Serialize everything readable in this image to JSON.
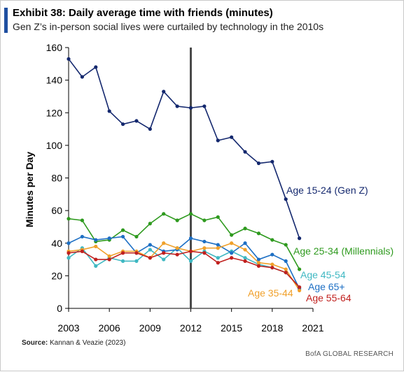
{
  "header": {
    "title": "Exhibit 38: Daily average time with friends (minutes)",
    "subtitle": "Gen Z’s in-person social lives were curtailed by technology in the 2010s"
  },
  "footer": {
    "source_label": "Source:",
    "source_text": "Kannan & Veazie (2023)",
    "brand": "BofA GLOBAL RESEARCH"
  },
  "chart_data": {
    "type": "line",
    "title": "Exhibit 38: Daily average time with friends (minutes)",
    "xlabel": "",
    "ylabel": "Minutes per Day",
    "xlim": [
      2003,
      2021
    ],
    "ylim": [
      0,
      160
    ],
    "x_ticks": [
      2003,
      2006,
      2009,
      2012,
      2015,
      2018,
      2021
    ],
    "y_ticks": [
      0,
      20,
      40,
      60,
      80,
      100,
      120,
      140,
      160
    ],
    "grid": false,
    "legend": "direct labels at line ends",
    "reference_line": {
      "x": 2012,
      "color": "#4a4a4a"
    },
    "x": [
      2003,
      2004,
      2005,
      2006,
      2007,
      2008,
      2009,
      2010,
      2011,
      2012,
      2013,
      2014,
      2015,
      2016,
      2017,
      2018,
      2019,
      2020
    ],
    "series": [
      {
        "name": "Age 15-24 (Gen Z)",
        "color": "#14286e",
        "values": [
          153,
          142,
          148,
          121,
          113,
          115,
          110,
          133,
          124,
          123,
          124,
          103,
          105,
          96,
          89,
          90,
          67,
          43
        ]
      },
      {
        "name": "Age 25-34 (Millennials)",
        "color": "#2e9a1e",
        "values": [
          55,
          54,
          41,
          42,
          48,
          44,
          52,
          58,
          54,
          58,
          54,
          56,
          45,
          49,
          46,
          42,
          39,
          24
        ]
      },
      {
        "name": "Age 45-54",
        "color": "#3fb8c2",
        "values": [
          31,
          37,
          26,
          31,
          29,
          29,
          36,
          30,
          37,
          29,
          35,
          31,
          35,
          31,
          27,
          25,
          22,
          13
        ]
      },
      {
        "name": "Age 65+",
        "color": "#1d6fc4",
        "values": [
          40,
          44,
          42,
          43,
          44,
          34,
          39,
          35,
          36,
          43,
          41,
          39,
          34,
          40,
          30,
          33,
          29,
          12
        ]
      },
      {
        "name": "Age 35-44",
        "color": "#f0a02a",
        "values": [
          35,
          36,
          38,
          32,
          35,
          35,
          31,
          40,
          37,
          35,
          37,
          37,
          40,
          36,
          28,
          27,
          24,
          11
        ]
      },
      {
        "name": "Age 55-64",
        "color": "#c0201e",
        "values": [
          34,
          35,
          30,
          30,
          34,
          34,
          31,
          34,
          33,
          35,
          34,
          28,
          31,
          29,
          26,
          25,
          22,
          13
        ]
      }
    ]
  }
}
